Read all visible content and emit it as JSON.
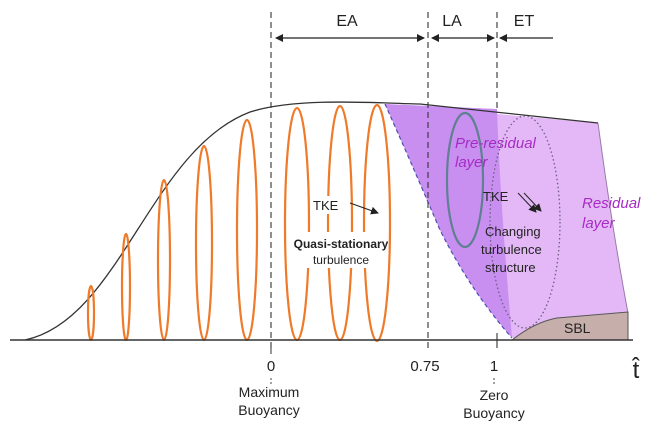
{
  "phases": {
    "ea": "EA",
    "la": "LA",
    "et": "ET"
  },
  "regions": {
    "pre_residual_line1": "Pre-residual",
    "pre_residual_line2": "layer",
    "residual_line1": "Residual",
    "residual_line2": "layer",
    "sbl": "SBL"
  },
  "labels": {
    "tke_left": "TKE",
    "quasi_line1": "Quasi-stationary",
    "quasi_line2": "turbulence",
    "tke_right": "TKE",
    "changing_line1": "Changing",
    "changing_line2": "turbulence",
    "changing_line3": "structure"
  },
  "axis": {
    "tick_0": "0",
    "tick_075": "0.75",
    "tick_1": "1",
    "symbol": "t̂",
    "max_line1": "Maximum",
    "max_line2": "Buoyancy",
    "zero_line1": "Zero",
    "zero_line2": "Buoyancy"
  },
  "colors": {
    "orange": "#ee7a2a",
    "purple_text": "#a62bc4",
    "residual_fill": "#e4b8f6",
    "pre_residual_fill": "#c98ff0",
    "sbl_fill": "#c6aeaa",
    "pre_residual_ellipse": "#5f7f92"
  }
}
